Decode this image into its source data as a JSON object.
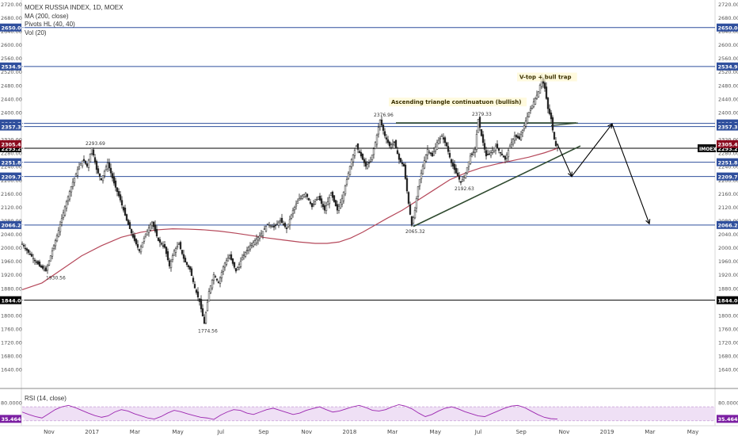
{
  "legend": {
    "title": "MOEX RUSSIA INDEX, 1D, MOEX",
    "ma": "MA (200, close)",
    "pivots": "Pivots HL (40, 40)",
    "vol": "Vol (20)"
  },
  "rsi_legend": "RSI (14, close)",
  "colors": {
    "candle": "#222222",
    "ma": "#b5485a",
    "rsi_line": "#9c27b0",
    "rsi_band": "#efe0f5",
    "blue_level": "#2f4f9d",
    "black_level": "#000000",
    "trend_green": "#2f4a2f"
  },
  "chart_data": [
    {
      "type": "line",
      "title": "",
      "y_axis_ticks": [
        "2720.00",
        "2680.00",
        "2640.00",
        "2600.00",
        "2560.00",
        "2520.00",
        "2480.00",
        "2440.00",
        "2400.00",
        "2360.00",
        "2320.00",
        "2280.00",
        "2240.00",
        "2200.00",
        "2160.00",
        "2120.00",
        "2080.00",
        "2040.00",
        "2000.00",
        "1960.00",
        "1920.00",
        "1880.00",
        "1840.00",
        "1800.00",
        "1760.00",
        "1720.00",
        "1680.00",
        "1640.00"
      ],
      "ylim": [
        1630,
        2722
      ],
      "x_axis_ticks": [
        "Nov",
        "2017",
        "Mar",
        "May",
        "Jul",
        "Sep",
        "Nov",
        "2018",
        "Mar",
        "May",
        "Jul",
        "Sep",
        "Nov",
        "2019",
        "Mar",
        "May"
      ],
      "series": [
        {
          "name": "MOEX RUSSIA INDEX",
          "style": "candles",
          "points": [
            [
              0,
              2010
            ],
            [
              8,
              1985
            ],
            [
              15,
              1965
            ],
            [
              22,
              1945
            ],
            [
              30,
              1931
            ],
            [
              38,
              1990
            ],
            [
              46,
              2050
            ],
            [
              54,
              2120
            ],
            [
              62,
              2180
            ],
            [
              70,
              2230
            ],
            [
              77,
              2260
            ],
            [
              82,
              2240
            ],
            [
              88,
              2294
            ],
            [
              94,
              2230
            ],
            [
              100,
              2200
            ],
            [
              108,
              2250
            ],
            [
              116,
              2190
            ],
            [
              124,
              2140
            ],
            [
              132,
              2080
            ],
            [
              140,
              2030
            ],
            [
              148,
              1990
            ],
            [
              156,
              2040
            ],
            [
              164,
              2075
            ],
            [
              172,
              2020
            ],
            [
              180,
              2000
            ],
            [
              186,
              1945
            ],
            [
              192,
              1990
            ],
            [
              198,
              2010
            ],
            [
              205,
              1960
            ],
            [
              212,
              1935
            ],
            [
              218,
              1880
            ],
            [
              224,
              1840
            ],
            [
              230,
              1775
            ],
            [
              236,
              1870
            ],
            [
              242,
              1920
            ],
            [
              248,
              1895
            ],
            [
              255,
              1950
            ],
            [
              262,
              1975
            ],
            [
              270,
              1930
            ],
            [
              278,
              1970
            ],
            [
              286,
              2000
            ],
            [
              294,
              2020
            ],
            [
              302,
              2040
            ],
            [
              310,
              2070
            ],
            [
              318,
              2060
            ],
            [
              326,
              2080
            ],
            [
              334,
              2055
            ],
            [
              342,
              2110
            ],
            [
              350,
              2145
            ],
            [
              358,
              2160
            ],
            [
              366,
              2120
            ],
            [
              374,
              2150
            ],
            [
              382,
              2110
            ],
            [
              390,
              2160
            ],
            [
              398,
              2110
            ],
            [
              404,
              2145
            ],
            [
              410,
              2200
            ],
            [
              416,
              2260
            ],
            [
              422,
              2300
            ],
            [
              428,
              2270
            ],
            [
              434,
              2240
            ],
            [
              440,
              2255
            ],
            [
              446,
              2310
            ],
            [
              452,
              2377
            ],
            [
              458,
              2330
            ],
            [
              464,
              2300
            ],
            [
              470,
              2310
            ],
            [
              476,
              2260
            ],
            [
              482,
              2240
            ],
            [
              488,
              2130
            ],
            [
              492,
              2065
            ],
            [
              496,
              2110
            ],
            [
              500,
              2180
            ],
            [
              506,
              2240
            ],
            [
              512,
              2290
            ],
            [
              518,
              2270
            ],
            [
              524,
              2310
            ],
            [
              530,
              2330
            ],
            [
              536,
              2300
            ],
            [
              542,
              2250
            ],
            [
              548,
              2220
            ],
            [
              554,
              2192
            ],
            [
              560,
              2220
            ],
            [
              566,
              2270
            ],
            [
              572,
              2290
            ],
            [
              576,
              2379
            ],
            [
              580,
              2330
            ],
            [
              586,
              2270
            ],
            [
              592,
              2280
            ],
            [
              598,
              2300
            ],
            [
              604,
              2280
            ],
            [
              610,
              2260
            ],
            [
              616,
              2300
            ],
            [
              622,
              2330
            ],
            [
              628,
              2320
            ],
            [
              634,
              2360
            ],
            [
              640,
              2400
            ],
            [
              646,
              2430
            ],
            [
              652,
              2460
            ],
            [
              656,
              2500
            ],
            [
              660,
              2470
            ],
            [
              664,
              2410
            ],
            [
              668,
              2380
            ],
            [
              671,
              2330
            ],
            [
              674,
              2300
            ],
            [
              676,
              2305
            ]
          ]
        },
        {
          "name": "MA (200, close)",
          "points": [
            [
              0,
              1875
            ],
            [
              25,
              1895
            ],
            [
              50,
              1935
            ],
            [
              75,
              1975
            ],
            [
              100,
              2005
            ],
            [
              125,
              2030
            ],
            [
              150,
              2045
            ],
            [
              170,
              2052
            ],
            [
              190,
              2055
            ],
            [
              210,
              2054
            ],
            [
              230,
              2052
            ],
            [
              250,
              2048
            ],
            [
              270,
              2042
            ],
            [
              290,
              2035
            ],
            [
              310,
              2028
            ],
            [
              330,
              2022
            ],
            [
              350,
              2016
            ],
            [
              370,
              2012
            ],
            [
              385,
              2012
            ],
            [
              400,
              2016
            ],
            [
              415,
              2028
            ],
            [
              430,
              2045
            ],
            [
              445,
              2065
            ],
            [
              460,
              2085
            ],
            [
              480,
              2110
            ],
            [
              500,
              2140
            ],
            [
              520,
              2170
            ],
            [
              540,
              2200
            ],
            [
              560,
              2220
            ],
            [
              580,
              2236
            ],
            [
              600,
              2247
            ],
            [
              620,
              2257
            ],
            [
              640,
              2267
            ],
            [
              660,
              2280
            ],
            [
              676,
              2293
            ]
          ]
        }
      ],
      "horizontal_levels": [
        {
          "value": "2650.00",
          "color": "blue"
        },
        {
          "value": "2534.97",
          "color": "blue"
        },
        {
          "value": "2366.57",
          "color": "blue"
        },
        {
          "value": "2357.33",
          "color": "blue"
        },
        {
          "value": "2293.22",
          "color": "black"
        },
        {
          "value": "2251.87",
          "color": "blue"
        },
        {
          "value": "2209.72",
          "color": "blue"
        },
        {
          "value": "2066.29",
          "color": "blue"
        },
        {
          "value": "1844.03",
          "color": "black"
        }
      ],
      "price_badges": [
        {
          "value": "2305.43",
          "color": "red"
        },
        {
          "value": "IMOEX",
          "color": "black"
        }
      ],
      "pivot_labels": [
        "1930.56",
        "2293.69",
        "1774.56",
        "2376.96",
        "2065.32",
        "2379.33",
        "2192.63"
      ],
      "annotations": [
        "V-top + bull trap",
        "Ascending triangle continuatuon (bullish)"
      ]
    },
    {
      "type": "line",
      "title": "RSI (14, close)",
      "y_axis_ticks": [
        "80.0000"
      ],
      "last_value": "35.4649",
      "bands": [
        30,
        70
      ],
      "series": [
        {
          "name": "RSI (14, close)",
          "values": [
            55,
            48,
            42,
            38,
            50,
            62,
            70,
            74,
            68,
            60,
            52,
            45,
            40,
            44,
            55,
            62,
            58,
            50,
            44,
            38,
            35,
            42,
            52,
            60,
            56,
            50,
            45,
            40,
            38,
            34,
            46,
            55,
            62,
            60,
            52,
            48,
            55,
            62,
            66,
            60,
            54,
            48,
            52,
            60,
            65,
            70,
            62,
            55,
            58,
            64,
            70,
            74,
            68,
            60,
            58,
            62,
            70,
            76,
            72,
            64,
            52,
            42,
            48,
            58,
            66,
            70,
            64,
            56,
            50,
            44,
            42,
            50,
            58,
            66,
            72,
            74,
            68,
            58,
            48,
            40,
            36,
            35
          ]
        }
      ]
    }
  ]
}
